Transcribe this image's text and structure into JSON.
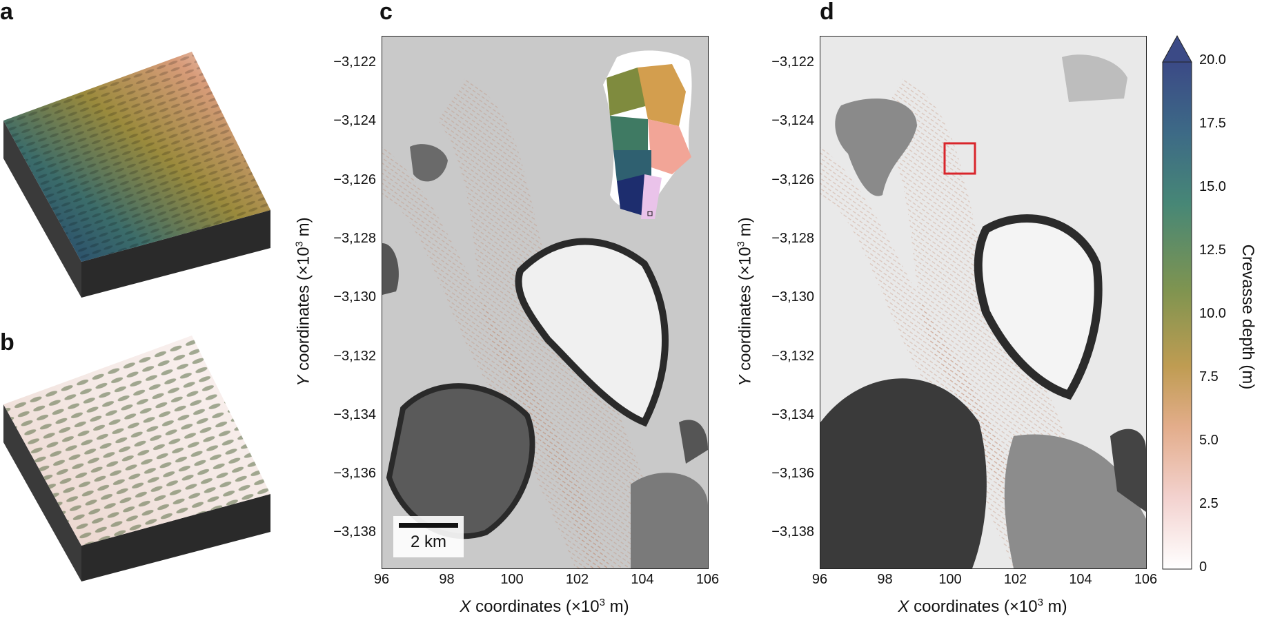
{
  "panels": {
    "a": {
      "letter": "a"
    },
    "b": {
      "letter": "b"
    },
    "c": {
      "letter": "c"
    },
    "d": {
      "letter": "d"
    }
  },
  "axes": {
    "x_title_prefix": "X",
    "x_title_rest": " coordinates (×10",
    "x_title_exp": "3",
    "x_title_suffix": " m)",
    "y_title_prefix": "Y",
    "y_title_rest": " coordinates (×10",
    "y_title_exp": "3",
    "y_title_suffix": " m)",
    "x_ticks": [
      "96",
      "98",
      "100",
      "102",
      "104",
      "106"
    ],
    "y_ticks": [
      "−3,122",
      "−3,124",
      "−3,126",
      "−3,128",
      "−3,130",
      "−3,132",
      "−3,134",
      "−3,136",
      "−3,138"
    ]
  },
  "scale_bar": {
    "label": "2 km"
  },
  "colorbar": {
    "title": "Crevasse depth (m)",
    "ticks": [
      "20.0",
      "17.5",
      "15.0",
      "12.5",
      "10.0",
      "7.5",
      "5.0",
      "2.5",
      "0"
    ],
    "colors": [
      "#3b4a86",
      "#3d6a86",
      "#478776",
      "#7f9450",
      "#bf9c52",
      "#e3ad8b",
      "#f3d2cf",
      "#ffffff"
    ]
  }
}
